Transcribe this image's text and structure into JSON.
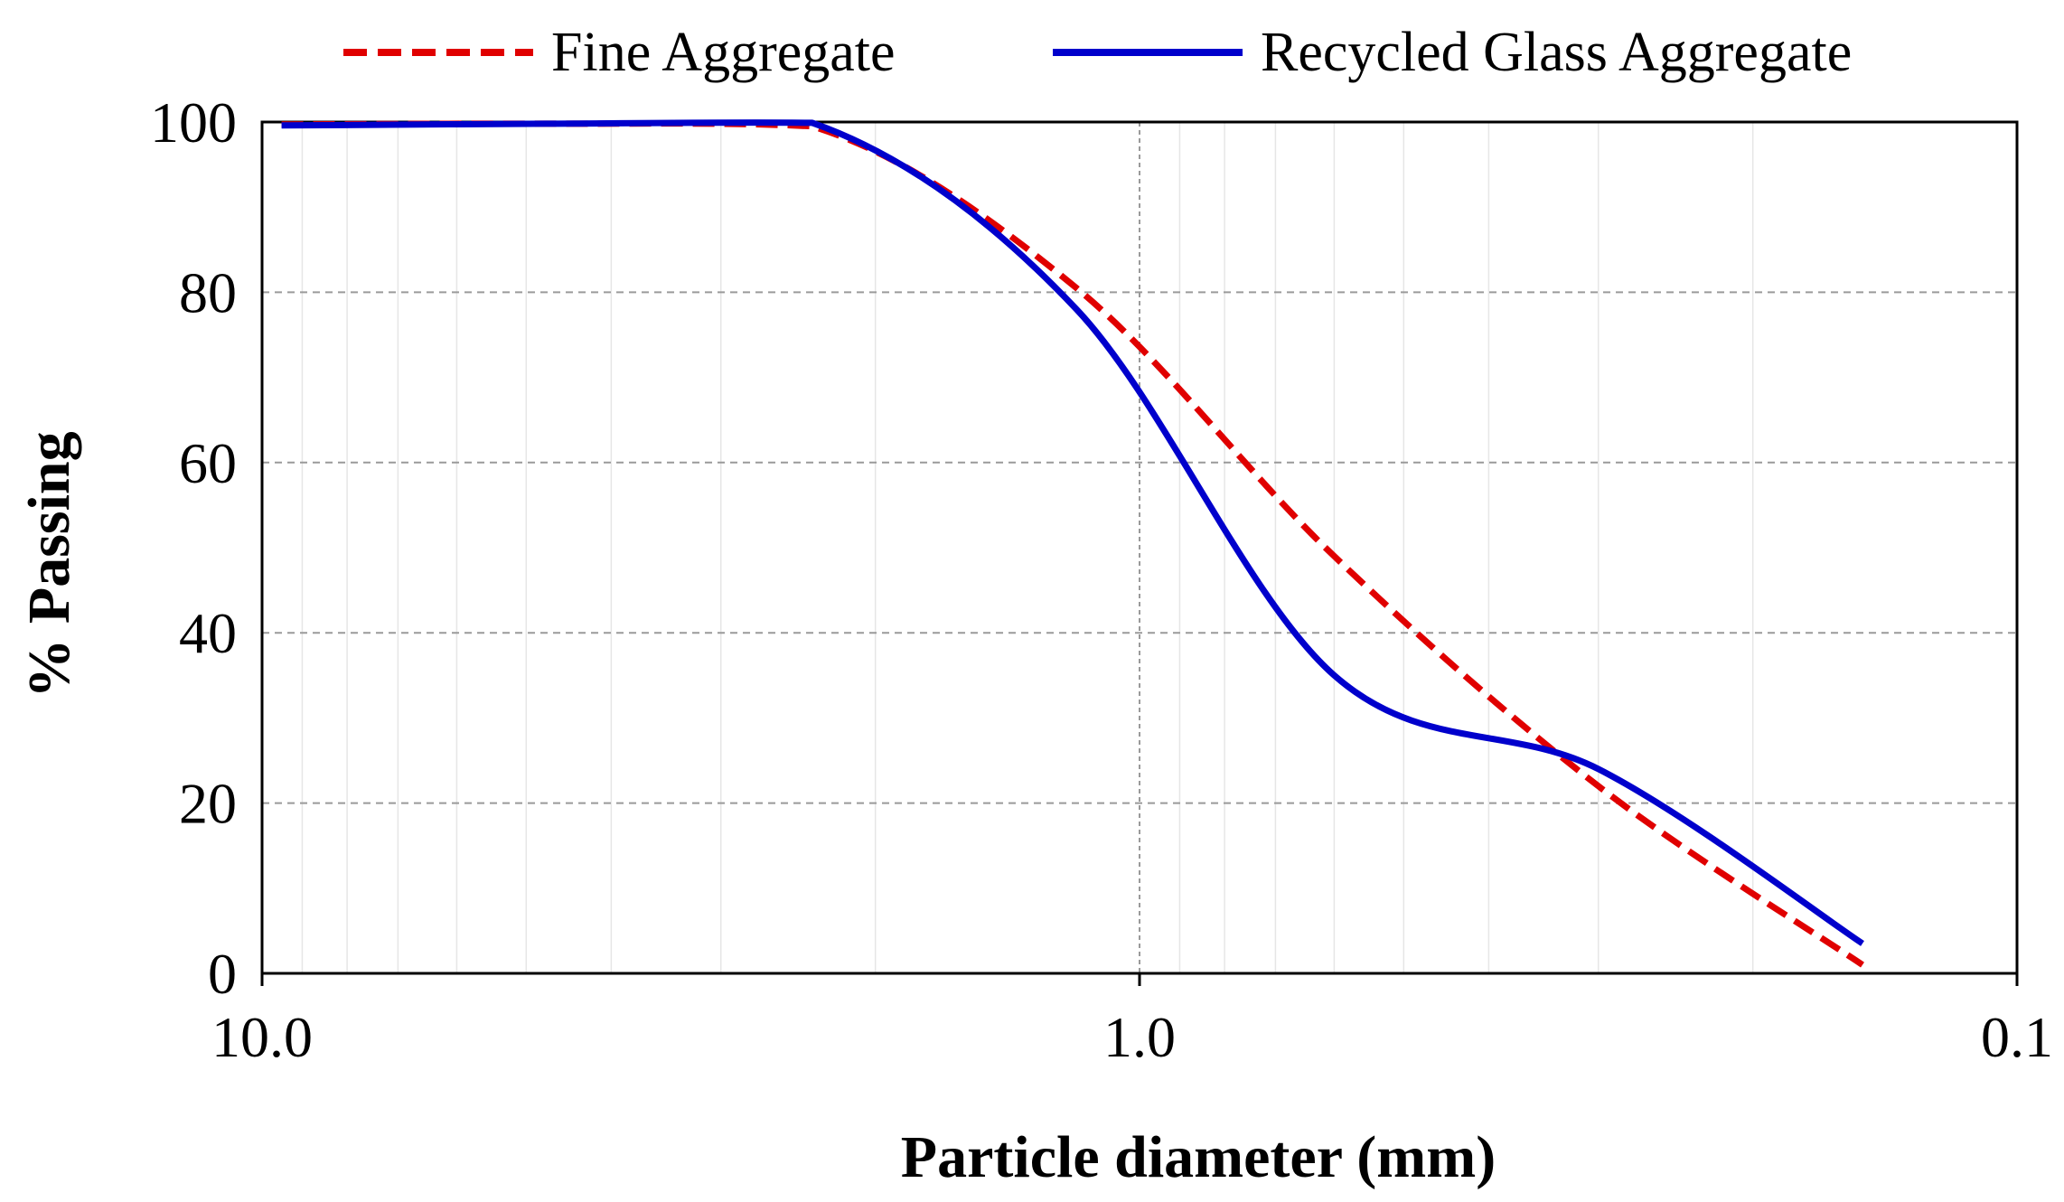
{
  "chart_data": {
    "type": "line",
    "title": "",
    "xlabel": "Particle diameter (mm)",
    "ylabel": "% Passing",
    "x_scale": "log",
    "x_reversed": true,
    "xlim": [
      10.0,
      0.1
    ],
    "ylim": [
      0,
      100
    ],
    "x_ticks": [
      {
        "value": 10.0,
        "label": "10.0"
      },
      {
        "value": 1.0,
        "label": "1.0"
      },
      {
        "value": 0.1,
        "label": "0.1"
      }
    ],
    "y_ticks": [
      {
        "value": 0,
        "label": "0"
      },
      {
        "value": 20,
        "label": "20"
      },
      {
        "value": 40,
        "label": "40"
      },
      {
        "value": 60,
        "label": "60"
      },
      {
        "value": 80,
        "label": "80"
      },
      {
        "value": 100,
        "label": "100"
      }
    ],
    "grid": true,
    "legend_position": "top",
    "series": [
      {
        "name": "Fine Aggregate",
        "color": "#e00000",
        "style": "dashed",
        "points": [
          [
            9.5,
            99.7
          ],
          [
            4.75,
            99.8
          ],
          [
            2.36,
            99.5
          ],
          [
            1.18,
            80.5
          ],
          [
            0.6,
            49.0
          ],
          [
            0.3,
            22.0
          ],
          [
            0.15,
            1.0
          ]
        ]
      },
      {
        "name": "Recycled Glass Aggregate",
        "color": "#0000cc",
        "style": "solid",
        "points": [
          [
            9.5,
            99.6
          ],
          [
            4.75,
            99.8
          ],
          [
            2.36,
            99.9
          ],
          [
            1.18,
            78.0
          ],
          [
            0.6,
            35.0
          ],
          [
            0.3,
            24.0
          ],
          [
            0.15,
            3.5
          ]
        ]
      }
    ]
  }
}
